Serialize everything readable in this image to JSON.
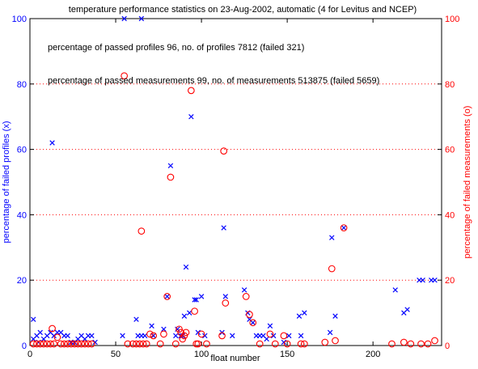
{
  "chart_data": {
    "type": "scatter",
    "title": "temperature performance statistics on 23-Aug-2002, automatic (4 for Levitus and NCEP)",
    "xlabel": "float number",
    "ylabel_left": "percentage of failed profiles (x)",
    "ylabel_right": "percentage of failed measurements (o)",
    "xlim": [
      0,
      240
    ],
    "ylim": [
      0,
      100
    ],
    "xticks": [
      "0",
      "50",
      "100",
      "150",
      "200"
    ],
    "yticks": [
      "0",
      "20",
      "40",
      "60",
      "80",
      "100"
    ],
    "grid": "dotted at right-axis ticks",
    "annotations": [
      "percentage of passed profiles 96, no. of profiles 7812 (failed 321)",
      "percentage of passed measurements 99, no. of measurements 513875 (failed 5659)"
    ],
    "colors": {
      "profiles": "#0000ff",
      "measurements": "#ff0000",
      "grid": "#ff0000",
      "text": "#000000"
    },
    "series": [
      {
        "marker": "x",
        "axis": "left",
        "points": [
          [
            2,
            8
          ],
          [
            2,
            2
          ],
          [
            4,
            3
          ],
          [
            5,
            1
          ],
          [
            6,
            4
          ],
          [
            8,
            2
          ],
          [
            10,
            3
          ],
          [
            12,
            4
          ],
          [
            13,
            62
          ],
          [
            14,
            3
          ],
          [
            16,
            4
          ],
          [
            18,
            4
          ],
          [
            20,
            3
          ],
          [
            22,
            3
          ],
          [
            24,
            1
          ],
          [
            26,
            1
          ],
          [
            28,
            2
          ],
          [
            30,
            3
          ],
          [
            32,
            2
          ],
          [
            34,
            3
          ],
          [
            36,
            3
          ],
          [
            38,
            1
          ],
          [
            54,
            3
          ],
          [
            55,
            100
          ],
          [
            62,
            8
          ],
          [
            63,
            3
          ],
          [
            65,
            3
          ],
          [
            65,
            100
          ],
          [
            67,
            3
          ],
          [
            71,
            6
          ],
          [
            72,
            3
          ],
          [
            78,
            5
          ],
          [
            80,
            15
          ],
          [
            82,
            55
          ],
          [
            85,
            3
          ],
          [
            86,
            5
          ],
          [
            88,
            3
          ],
          [
            89,
            3
          ],
          [
            90,
            9
          ],
          [
            91,
            24
          ],
          [
            93,
            10
          ],
          [
            94,
            70
          ],
          [
            96,
            14
          ],
          [
            97,
            14
          ],
          [
            98,
            4
          ],
          [
            100,
            15
          ],
          [
            102,
            3
          ],
          [
            112,
            4
          ],
          [
            113,
            36
          ],
          [
            114,
            15
          ],
          [
            118,
            3
          ],
          [
            125,
            17
          ],
          [
            127,
            10
          ],
          [
            128,
            8
          ],
          [
            130,
            7
          ],
          [
            132,
            3
          ],
          [
            134,
            3
          ],
          [
            136,
            3
          ],
          [
            138,
            2
          ],
          [
            140,
            6
          ],
          [
            142,
            3
          ],
          [
            148,
            1
          ],
          [
            151,
            3
          ],
          [
            157,
            9
          ],
          [
            158,
            3
          ],
          [
            160,
            10
          ],
          [
            175,
            4
          ],
          [
            176,
            33
          ],
          [
            178,
            9
          ],
          [
            183,
            36
          ],
          [
            213,
            17
          ],
          [
            218,
            10
          ],
          [
            220,
            11
          ],
          [
            227,
            20
          ],
          [
            229,
            20
          ],
          [
            234,
            20
          ],
          [
            236,
            20
          ]
        ]
      },
      {
        "marker": "o",
        "axis": "right",
        "points": [
          [
            2,
            0.5
          ],
          [
            4,
            0.5
          ],
          [
            6,
            0.5
          ],
          [
            8,
            0.5
          ],
          [
            10,
            0.5
          ],
          [
            12,
            0.5
          ],
          [
            13,
            5.2
          ],
          [
            14,
            0.5
          ],
          [
            16,
            2.5
          ],
          [
            18,
            0.5
          ],
          [
            20,
            0.5
          ],
          [
            22,
            0.5
          ],
          [
            24,
            0.5
          ],
          [
            26,
            0.5
          ],
          [
            28,
            0.5
          ],
          [
            30,
            0.5
          ],
          [
            32,
            0.5
          ],
          [
            34,
            0.5
          ],
          [
            36,
            0.5
          ],
          [
            55,
            82.5
          ],
          [
            57,
            0.5
          ],
          [
            60,
            0.5
          ],
          [
            62,
            0.5
          ],
          [
            64,
            0.5
          ],
          [
            65,
            35
          ],
          [
            66,
            0.5
          ],
          [
            68,
            0.5
          ],
          [
            70,
            3.5
          ],
          [
            72,
            3
          ],
          [
            76,
            0.5
          ],
          [
            78,
            3.5
          ],
          [
            80,
            15
          ],
          [
            82,
            51.5
          ],
          [
            85,
            0.5
          ],
          [
            87,
            5
          ],
          [
            88,
            4
          ],
          [
            89,
            2
          ],
          [
            90,
            3
          ],
          [
            91,
            4
          ],
          [
            94,
            78
          ],
          [
            96,
            10.5
          ],
          [
            97,
            0.5
          ],
          [
            98,
            0.5
          ],
          [
            100,
            3.5
          ],
          [
            103,
            0.5
          ],
          [
            112,
            3
          ],
          [
            113,
            59.5
          ],
          [
            114,
            13
          ],
          [
            126,
            15
          ],
          [
            128,
            9.5
          ],
          [
            130,
            7
          ],
          [
            134,
            0.5
          ],
          [
            140,
            3.5
          ],
          [
            143,
            0.5
          ],
          [
            148,
            3
          ],
          [
            150,
            0.5
          ],
          [
            158,
            0.5
          ],
          [
            160,
            0.5
          ],
          [
            172,
            1
          ],
          [
            176,
            23.5
          ],
          [
            178,
            1.5
          ],
          [
            183,
            36
          ],
          [
            211,
            0.5
          ],
          [
            218,
            1
          ],
          [
            222,
            0.5
          ],
          [
            228,
            0.5
          ],
          [
            232,
            0.5
          ],
          [
            236,
            1.5
          ]
        ]
      }
    ]
  }
}
